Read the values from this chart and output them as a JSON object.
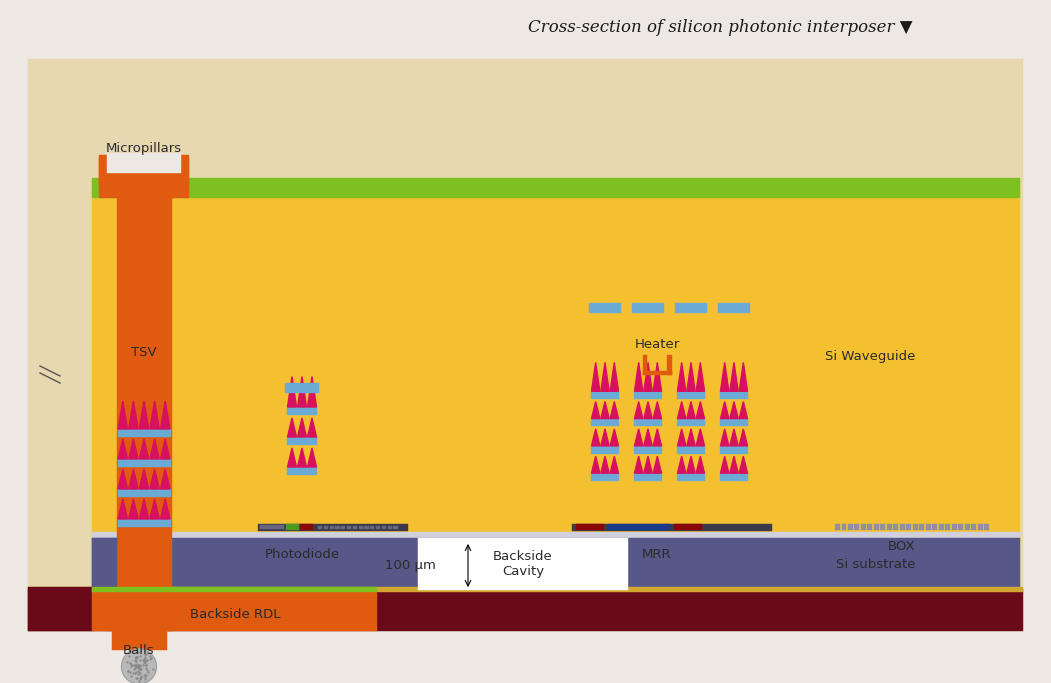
{
  "title": "Cross-section of silicon photonic interposer ▼",
  "bg_color": "#ede8e3",
  "colors": {
    "orange": "#E05A10",
    "yellow": "#F5C030",
    "blue": "#6aaad4",
    "pink": "#D81060",
    "green": "#4A9A20",
    "purple": "#585888",
    "dark_red": "#6A0A18",
    "lime": "#7EC020",
    "white": "#FFFFFF",
    "light_gray": "#C8C8D0",
    "solder_gray": "#B8B8B8",
    "dark": "#333333",
    "box_layer": "#D0D0DC"
  },
  "labels": {
    "micropillars": "Micropillars",
    "tsv": "TSV",
    "photodiode": "Photodiode",
    "heater": "Heater",
    "mrr": "MRR",
    "si_waveguide": "Si Waveguide",
    "box": "BOX",
    "si_substrate": "Si substrate",
    "backside_cavity": "Backside\nCavity",
    "backside_rdl": "Backside RDL",
    "balls": "Balls",
    "dim_label": "100 μm"
  }
}
